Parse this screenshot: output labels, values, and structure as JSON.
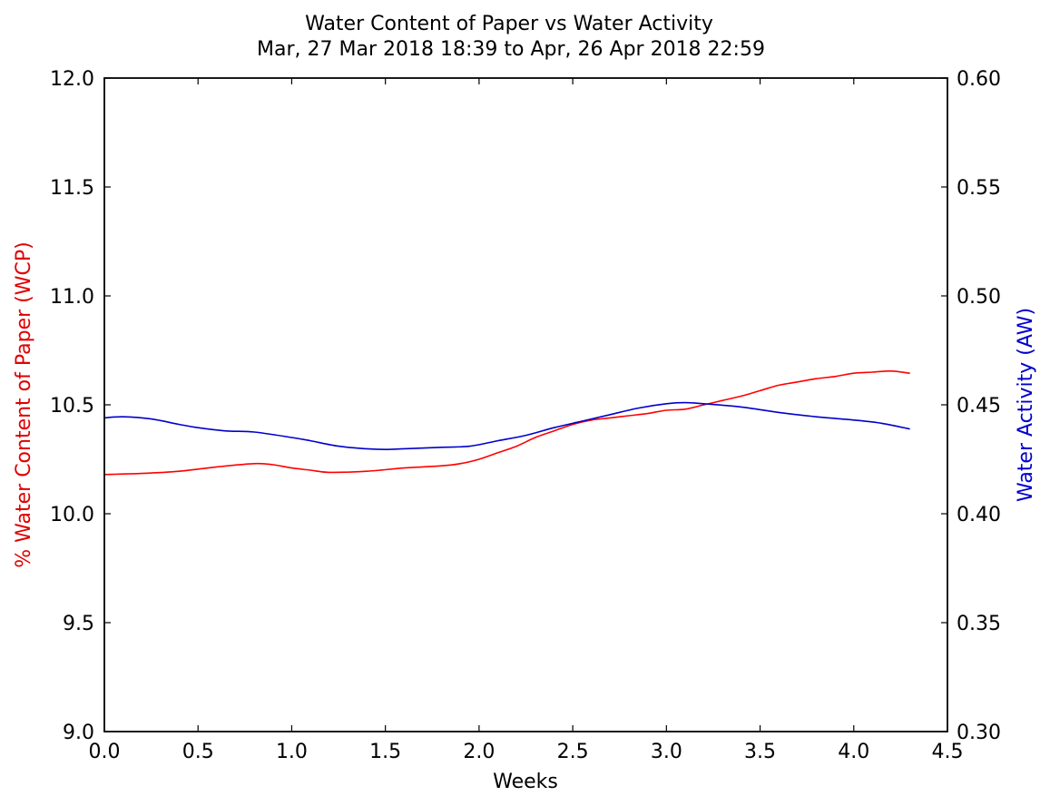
{
  "chart_data": {
    "type": "line",
    "title": "Water Content of Paper vs Water Activity",
    "subtitle": "Mar, 27 Mar 2018 18:39 to Apr, 26 Apr 2018 22:59",
    "xlabel": "Weeks",
    "ylabel_left": "% Water Content of Paper (WCP)",
    "ylabel_right": "Water Activity (AW)",
    "xlim": [
      0.0,
      4.5
    ],
    "ylim_left": [
      9.0,
      12.0
    ],
    "ylim_right": [
      0.3,
      0.6
    ],
    "x_ticks": [
      "0.0",
      "0.5",
      "1.0",
      "1.5",
      "2.0",
      "2.5",
      "3.0",
      "3.5",
      "4.0",
      "4.5"
    ],
    "y_left_ticks": [
      "9.0",
      "9.5",
      "10.0",
      "10.5",
      "11.0",
      "11.5",
      "12.0"
    ],
    "y_right_ticks": [
      "0.30",
      "0.35",
      "0.40",
      "0.45",
      "0.50",
      "0.55",
      "0.60"
    ],
    "grid": false,
    "colors": {
      "wcp": "#ff0000",
      "aw": "#0000cc",
      "axis_left_label": "#e00000",
      "axis_right_label": "#0000cc"
    },
    "series": [
      {
        "axis": "left",
        "color": "#ff0000",
        "x": [
          0.0,
          0.2,
          0.4,
          0.6,
          0.8,
          0.9,
          1.0,
          1.1,
          1.2,
          1.4,
          1.6,
          1.8,
          1.9,
          2.0,
          2.1,
          2.2,
          2.3,
          2.4,
          2.5,
          2.6,
          2.7,
          2.8,
          2.9,
          3.0,
          3.1,
          3.2,
          3.3,
          3.4,
          3.5,
          3.6,
          3.7,
          3.8,
          3.9,
          4.0,
          4.1,
          4.2,
          4.3
        ],
        "values": [
          10.18,
          10.185,
          10.195,
          10.215,
          10.23,
          10.225,
          10.21,
          10.2,
          10.19,
          10.195,
          10.21,
          10.22,
          10.23,
          10.25,
          10.28,
          10.31,
          10.35,
          10.38,
          10.41,
          10.43,
          10.44,
          10.45,
          10.46,
          10.475,
          10.48,
          10.5,
          10.52,
          10.54,
          10.565,
          10.59,
          10.605,
          10.62,
          10.63,
          10.645,
          10.65,
          10.655,
          10.645
        ]
      },
      {
        "axis": "right",
        "color": "#0000cc",
        "x": [
          0.0,
          0.1,
          0.25,
          0.4,
          0.5,
          0.65,
          0.8,
          1.0,
          1.1,
          1.25,
          1.4,
          1.5,
          1.6,
          1.8,
          1.95,
          2.1,
          2.25,
          2.4,
          2.55,
          2.7,
          2.85,
          3.0,
          3.1,
          3.2,
          3.4,
          3.6,
          3.8,
          4.0,
          4.15,
          4.3
        ],
        "values": [
          0.444,
          0.4445,
          0.4435,
          0.441,
          0.4395,
          0.438,
          0.4375,
          0.435,
          0.4335,
          0.431,
          0.4298,
          0.4295,
          0.4298,
          0.4305,
          0.431,
          0.4335,
          0.436,
          0.4395,
          0.4425,
          0.4455,
          0.4485,
          0.4505,
          0.451,
          0.4505,
          0.449,
          0.4465,
          0.4445,
          0.443,
          0.4415,
          0.4389
        ]
      }
    ]
  }
}
